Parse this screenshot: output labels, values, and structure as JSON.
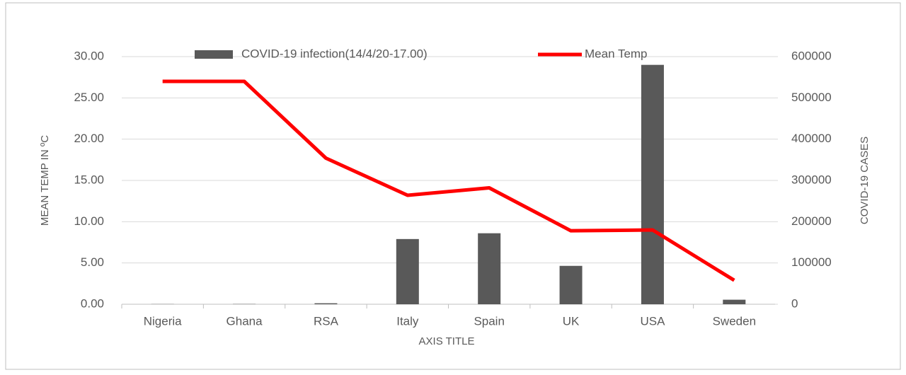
{
  "chart_data": {
    "type": "bar-line",
    "categories": [
      "Nigeria",
      "Ghana",
      "RSA",
      "Italy",
      "Spain",
      "UK",
      "USA",
      "Sweden"
    ],
    "series": [
      {
        "name": "COVID-19 infection(14/4/20-17.00)",
        "type": "bar",
        "axis": "y2",
        "color": "#595959",
        "values": [
          400,
          600,
          2400,
          158000,
          172000,
          93000,
          580000,
          11000
        ]
      },
      {
        "name": "Mean Temp",
        "type": "line",
        "axis": "y",
        "color": "#ff0000",
        "values": [
          27.0,
          27.0,
          17.7,
          13.2,
          14.1,
          8.9,
          9.0,
          2.9
        ]
      }
    ],
    "ylim": [
      0,
      30
    ],
    "yticks": [
      {
        "value": 0,
        "label": "0.00"
      },
      {
        "value": 5,
        "label": "5.00"
      },
      {
        "value": 10,
        "label": "10.00"
      },
      {
        "value": 15,
        "label": "15.00"
      },
      {
        "value": 20,
        "label": "20.00"
      },
      {
        "value": 25,
        "label": "25.00"
      },
      {
        "value": 30,
        "label": "30.00"
      }
    ],
    "y2lim": [
      0,
      600000
    ],
    "y2ticks": [
      0,
      100000,
      200000,
      300000,
      400000,
      500000,
      600000
    ],
    "y_label": "MEAN TEMP IN ºC",
    "y2_label": "COVID-19 CASES",
    "x_label": "AXIS TITLE",
    "grid": true,
    "legend": "top"
  }
}
